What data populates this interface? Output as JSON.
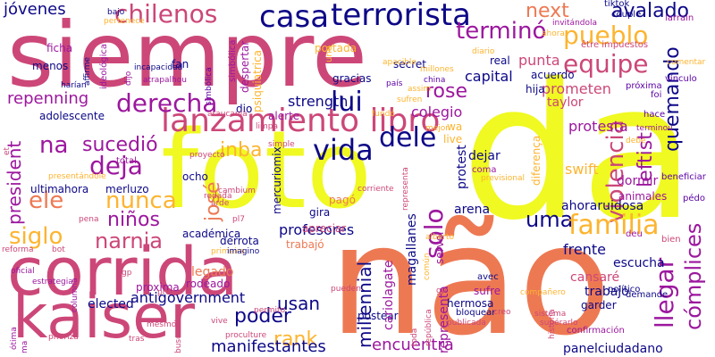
{
  "colors": {
    "background": "#ffffff",
    "palette": [
      "#0d0887",
      "#5c01a6",
      "#9c179e",
      "#cc4778",
      "#ed7953",
      "#fdb42f",
      "#f0f921"
    ]
  },
  "words": [
    {
      "text": "não",
      "color": "#ed7953"
    },
    {
      "text": "da",
      "color": "#f0f921"
    },
    {
      "text": "siempre",
      "color": "#cc4778"
    },
    {
      "text": "foto",
      "color": "#f0f921"
    },
    {
      "text": "corrida",
      "color": "#cc4778"
    },
    {
      "text": "kaiser",
      "color": "#cc4778"
    },
    {
      "text": "lanzamiento libro",
      "color": "#cc4778"
    },
    {
      "text": "terrorista",
      "color": "#0d0887"
    },
    {
      "text": "chilenos",
      "color": "#cc4778"
    },
    {
      "text": "casa",
      "color": "#0d0887"
    },
    {
      "text": "jóvenes",
      "color": "#0d0887"
    },
    {
      "text": "next",
      "color": "#ed7953"
    },
    {
      "text": "avalado",
      "color": "#0d0887"
    },
    {
      "text": "terminó",
      "color": "#9c179e"
    },
    {
      "text": "pueblo",
      "color": "#fdb42f"
    },
    {
      "text": "equipe",
      "color": "#cc4778"
    },
    {
      "text": "quemando",
      "color": "#0d0887"
    },
    {
      "text": "derecha",
      "color": "#9c179e"
    },
    {
      "text": "lui",
      "color": "#0d0887"
    },
    {
      "text": "dele",
      "color": "#0d0887"
    },
    {
      "text": "rose",
      "color": "#9c179e"
    },
    {
      "text": "vida",
      "color": "#0d0887"
    },
    {
      "text": "violencia",
      "color": "#cc4778"
    },
    {
      "text": "leftist",
      "color": "#9c179e"
    },
    {
      "text": "na",
      "color": "#9c179e"
    },
    {
      "text": "sucedió",
      "color": "#9c179e"
    },
    {
      "text": "deja",
      "color": "#9c179e"
    },
    {
      "text": "ele",
      "color": "#ed7953"
    },
    {
      "text": "nunca",
      "color": "#fdb42f"
    },
    {
      "text": "inba",
      "color": "#fdb42f"
    },
    {
      "text": "uma",
      "color": "#0d0887"
    },
    {
      "text": "familia",
      "color": "#fdb42f"
    },
    {
      "text": "solo",
      "color": "#9c179e"
    },
    {
      "text": "siglo",
      "color": "#fdb42f"
    },
    {
      "text": "narnia",
      "color": "#cc4778"
    },
    {
      "text": "niños",
      "color": "#9c179e"
    },
    {
      "text": "josé",
      "color": "#ed7953"
    },
    {
      "text": "president",
      "color": "#9c179e"
    },
    {
      "text": "repenning",
      "color": "#9c179e"
    },
    {
      "text": "protesta",
      "color": "#9c179e"
    },
    {
      "text": "llegar",
      "color": "#9c179e"
    },
    {
      "text": "cómplices",
      "color": "#9c179e"
    },
    {
      "text": "millennial",
      "color": "#0d0887"
    },
    {
      "text": "poder",
      "color": "#0d0887"
    },
    {
      "text": "usan",
      "color": "#0d0887"
    },
    {
      "text": "rank",
      "color": "#fdb42f"
    },
    {
      "text": "manifestantes",
      "color": "#0d0887"
    },
    {
      "text": "encuentra",
      "color": "#9c179e"
    },
    {
      "text": "profesores",
      "color": "#0d0887"
    },
    {
      "text": "ahoraruidosa",
      "color": "#0d0887"
    },
    {
      "text": "antigovernment",
      "color": "#0d0887"
    },
    {
      "text": "panelciudadano",
      "color": "#0d0887"
    },
    {
      "text": "capital",
      "color": "#0d0887"
    },
    {
      "text": "strength",
      "color": "#0d0887"
    },
    {
      "text": "colegio",
      "color": "#9c179e"
    },
    {
      "text": "secret",
      "color": "#0d0887"
    },
    {
      "text": "punta",
      "color": "#cc4778"
    },
    {
      "text": "prometen",
      "color": "#cc4778"
    },
    {
      "text": "taylor",
      "color": "#cc4778"
    },
    {
      "text": "swift",
      "color": "#fdb42f"
    },
    {
      "text": "dormir",
      "color": "#9c179e"
    },
    {
      "text": "animales",
      "color": "#9c179e"
    },
    {
      "text": "frente",
      "color": "#0d0887"
    },
    {
      "text": "escucha",
      "color": "#0d0887"
    },
    {
      "text": "cansaré",
      "color": "#cc4778"
    },
    {
      "text": "trabajo",
      "color": "#0d0887"
    },
    {
      "text": "garder",
      "color": "#0d0887"
    },
    {
      "text": "hermosa",
      "color": "#0d0887"
    },
    {
      "text": "sufre",
      "color": "#9c179e"
    },
    {
      "text": "bloquear",
      "color": "#0d0887"
    },
    {
      "text": "postear",
      "color": "#0d0887"
    },
    {
      "text": "cariolagate",
      "color": "#9c179e"
    },
    {
      "text": "magallanes",
      "color": "#0d0887"
    },
    {
      "text": "representa",
      "color": "#9c179e"
    },
    {
      "text": "arena",
      "color": "#0d0887"
    },
    {
      "text": "dejar",
      "color": "#0d0887"
    },
    {
      "text": "protest",
      "color": "#0d0887"
    },
    {
      "text": "servel",
      "color": "#9c179e"
    },
    {
      "text": "elected",
      "color": "#0d0887"
    },
    {
      "text": "legado",
      "color": "#ed7953"
    },
    {
      "text": "rodeado",
      "color": "#9c179e"
    },
    {
      "text": "proxima",
      "color": "#9c179e"
    },
    {
      "text": "trabajó",
      "color": "#ed7953"
    },
    {
      "text": "derrota",
      "color": "#0d0887"
    },
    {
      "text": "gira",
      "color": "#0d0887"
    },
    {
      "text": "pagó",
      "color": "#ed7953"
    },
    {
      "text": "apreciar",
      "color": "#cc4778"
    },
    {
      "text": "merluzo",
      "color": "#0d0887"
    },
    {
      "text": "ultimahora",
      "color": "#0d0887"
    },
    {
      "text": "ocho",
      "color": "#0d0887"
    },
    {
      "text": "total",
      "color": "#9c179e"
    },
    {
      "text": "alerte",
      "color": "#9c179e"
    },
    {
      "text": "dio",
      "color": "#0d0887"
    },
    {
      "text": "fan",
      "color": "#0d0887"
    },
    {
      "text": "gracias",
      "color": "#0d0887"
    },
    {
      "text": "despertar",
      "color": "#9c179e"
    },
    {
      "text": "portada",
      "color": "#fdb42f"
    },
    {
      "text": "adolescente",
      "color": "#0d0887"
    },
    {
      "text": "ficha",
      "color": "#9c179e"
    },
    {
      "text": "menos",
      "color": "#0d0887"
    },
    {
      "text": "mercuriomix",
      "color": "#0d0887"
    },
    {
      "text": "académica",
      "color": "#0d0887"
    },
    {
      "text": "psiquiatrica",
      "color": "#fdb42f"
    },
    {
      "text": "simbólica",
      "color": "#9c179e"
    },
    {
      "text": "acuerdo",
      "color": "#0d0887"
    },
    {
      "text": "hija",
      "color": "#0d0887"
    },
    {
      "text": "real",
      "color": "#0d0887"
    },
    {
      "text": "live",
      "color": "#fdb42f"
    },
    {
      "text": "wa",
      "color": "#fdb42f"
    },
    {
      "text": "coma",
      "color": "#9c179e"
    },
    {
      "text": "avec",
      "color": "#0d0887"
    },
    {
      "text": "tiktok",
      "color": "#0d0887"
    },
    {
      "text": "couple",
      "color": "#0d0887"
    },
    {
      "text": "être impuestos",
      "color": "#cc4778"
    },
    {
      "text": "larraín",
      "color": "#9c179e"
    },
    {
      "text": "próxima",
      "color": "#5c01a6"
    },
    {
      "text": "vínculo",
      "color": "#5c01a6"
    },
    {
      "text": "foi",
      "color": "#5c01a6"
    },
    {
      "text": "hace",
      "color": "#5c01a6"
    },
    {
      "text": "beneficiar",
      "color": "#5c01a6"
    },
    {
      "text": "pédo",
      "color": "#5c01a6"
    },
    {
      "text": "deu",
      "color": "#9c179e"
    },
    {
      "text": "bien",
      "color": "#cc4778"
    },
    {
      "text": "demande",
      "color": "#0d0887"
    },
    {
      "text": "confirmación",
      "color": "#9c179e"
    },
    {
      "text": "político",
      "color": "#0d0887"
    },
    {
      "text": "historia",
      "color": "#cc4778"
    },
    {
      "text": "sistema",
      "color": "#cc4778"
    },
    {
      "text": "supérarlo",
      "color": "#cc4778"
    },
    {
      "text": "creo",
      "color": "#cc4778"
    },
    {
      "text": "publicada",
      "color": "#cc4778"
    },
    {
      "text": "república",
      "color": "#cc4778"
    },
    {
      "text": "toda",
      "color": "#cc4778"
    },
    {
      "text": "gp",
      "color": "#cc4778"
    },
    {
      "text": "común",
      "color": "#fdb42f"
    },
    {
      "text": "alberto",
      "color": "#fdb42f"
    },
    {
      "text": "columna",
      "color": "#9c179e"
    },
    {
      "text": "oficial",
      "color": "#9c179e"
    },
    {
      "text": "estrategia",
      "color": "#9c179e"
    },
    {
      "text": "ótima",
      "color": "#9c179e"
    },
    {
      "text": "ma",
      "color": "#9c179e"
    },
    {
      "text": "prioriza",
      "color": "#cc4778"
    },
    {
      "text": "reforma",
      "color": "#cc4778"
    },
    {
      "text": "bot",
      "color": "#cc4778"
    },
    {
      "text": "pena",
      "color": "#cc4778"
    },
    {
      "text": "tras",
      "color": "#cc4778"
    },
    {
      "text": "mesmo",
      "color": "#cc4778"
    },
    {
      "text": "vive",
      "color": "#cc4778"
    },
    {
      "text": "permito",
      "color": "#cc4778"
    },
    {
      "text": "proculture",
      "color": "#cc4778"
    },
    {
      "text": "buscando",
      "color": "#cc4778"
    },
    {
      "text": "pro",
      "color": "#cc4778"
    },
    {
      "text": "gp",
      "color": "#cc4778"
    },
    {
      "text": "pueden",
      "color": "#cc4778"
    },
    {
      "text": "corriente",
      "color": "#cc4778"
    },
    {
      "text": "arde",
      "color": "#cc4778"
    },
    {
      "text": "pl7",
      "color": "#cc4778"
    },
    {
      "text": "rodada",
      "color": "#cc4778"
    },
    {
      "text": "cambium",
      "color": "#cc4778"
    },
    {
      "text": "proyecto",
      "color": "#cc4778"
    },
    {
      "text": "simple",
      "color": "#cc4778"
    },
    {
      "text": "limpa",
      "color": "#cc4778"
    },
    {
      "text": "araucanía",
      "color": "#cc4778"
    },
    {
      "text": "incapacidad",
      "color": "#0d0887"
    },
    {
      "text": "et",
      "color": "#cc4778"
    },
    {
      "text": "presentándole",
      "color": "#fdb42f"
    },
    {
      "text": "fundó",
      "color": "#fdb42f"
    },
    {
      "text": "mejor",
      "color": "#fdb42f"
    },
    {
      "text": "china",
      "color": "#5c01a6"
    },
    {
      "text": "país",
      "color": "#5c01a6"
    },
    {
      "text": "apacible",
      "color": "#fdb42f"
    },
    {
      "text": "assim",
      "color": "#fdb42f"
    },
    {
      "text": "sufren",
      "color": "#fdb42f"
    },
    {
      "text": "millones",
      "color": "#fdb42f"
    },
    {
      "text": "diario",
      "color": "#fdb42f"
    },
    {
      "text": "ahora",
      "color": "#fdb42f"
    },
    {
      "text": "invitándola",
      "color": "#9c179e"
    },
    {
      "text": "diferença",
      "color": "#fdb42f"
    },
    {
      "text": "previsional",
      "color": "#fdb42f"
    },
    {
      "text": "compañero",
      "color": "#fdb42f"
    },
    {
      "text": "terminou",
      "color": "#9c179e"
    },
    {
      "text": "debe",
      "color": "#fdb42f"
    },
    {
      "text": "comentar",
      "color": "#fdb42f"
    },
    {
      "text": "pertenece",
      "color": "#fdb42f"
    },
    {
      "text": "bajo",
      "color": "#0d0887"
    },
    {
      "text": "harían",
      "color": "#0d0887"
    },
    {
      "text": "affirme",
      "color": "#0d0887"
    },
    {
      "text": "ideológica",
      "color": "#9c179e"
    },
    {
      "text": "dijo",
      "color": "#9c179e"
    },
    {
      "text": "atrapalhou",
      "color": "#9c179e"
    },
    {
      "text": "simbólica",
      "color": "#5c01a6"
    },
    {
      "text": "une",
      "color": "#fdb42f"
    },
    {
      "text": "primeira",
      "color": "#fdb42f"
    },
    {
      "text": "imagino",
      "color": "#0d0887"
    },
    {
      "text": "representa",
      "color": "#cc4778"
    }
  ]
}
